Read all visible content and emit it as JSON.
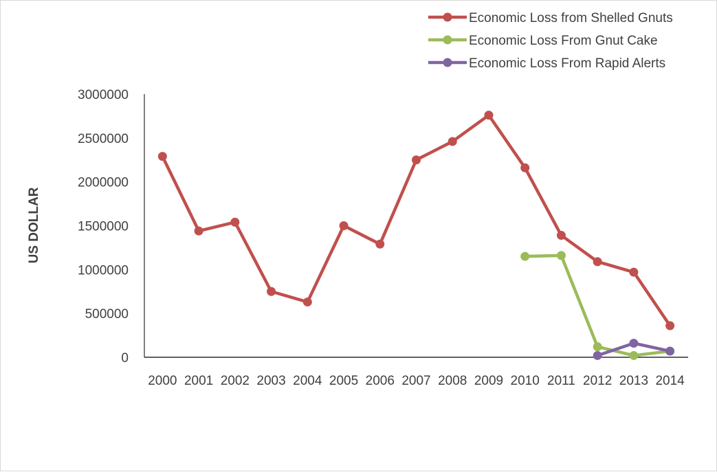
{
  "chart_data": {
    "type": "line",
    "title": "",
    "xlabel": "",
    "ylabel": "US DOLLAR",
    "ylim": [
      0,
      3000000
    ],
    "yticks": [
      0,
      500000,
      1000000,
      1500000,
      2000000,
      2500000,
      3000000
    ],
    "ytick_labels": [
      "0",
      "500000",
      "1000000",
      "1500000",
      "2000000",
      "2500000",
      "3000000"
    ],
    "categories": [
      "2000",
      "2001",
      "2002",
      "2003",
      "2004",
      "2005",
      "2006",
      "2007",
      "2008",
      "2009",
      "2010",
      "2011",
      "2012",
      "2013",
      "2014"
    ],
    "grid": false,
    "legend_position": "top-right",
    "series": [
      {
        "name": "Economic Loss from Shelled Gnuts",
        "color": "#c0504d",
        "values": [
          2290000,
          1440000,
          1540000,
          750000,
          630000,
          1500000,
          1290000,
          2250000,
          2460000,
          2760000,
          2160000,
          1390000,
          1090000,
          970000,
          360000
        ]
      },
      {
        "name": "Economic Loss From Gnut Cake",
        "color": "#9bbb59",
        "values": [
          null,
          null,
          null,
          null,
          null,
          null,
          null,
          null,
          null,
          null,
          1150000,
          1160000,
          120000,
          20000,
          70000
        ]
      },
      {
        "name": "Economic Loss From Rapid Alerts",
        "color": "#8064a2",
        "values": [
          null,
          null,
          null,
          null,
          null,
          null,
          null,
          null,
          null,
          null,
          null,
          null,
          20000,
          160000,
          70000
        ]
      }
    ]
  }
}
